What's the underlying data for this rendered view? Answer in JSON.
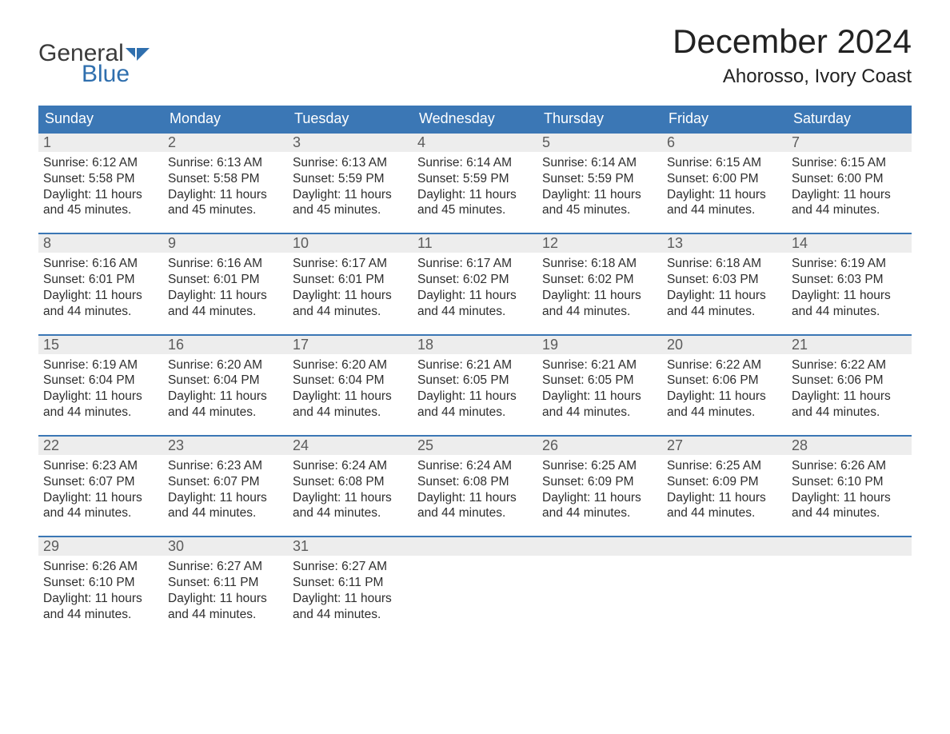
{
  "logo": {
    "word1": "General",
    "word2": "Blue",
    "word1_color": "#3a3a3a",
    "word2_color": "#2f6fae",
    "flag_color": "#2f6fae"
  },
  "title": {
    "month": "December 2024",
    "location": "Ahorosso, Ivory Coast",
    "month_fontsize": 42,
    "location_fontsize": 24,
    "text_color": "#222222"
  },
  "colors": {
    "header_bg": "#3b77b5",
    "header_text": "#ffffff",
    "row_divider": "#3b77b5",
    "daynum_bg": "#ededed",
    "daynum_text": "#5c5c5c",
    "body_text": "#2e2e2e",
    "page_bg": "#ffffff"
  },
  "layout": {
    "columns": 7,
    "header_fontsize": 18,
    "daynum_fontsize": 18,
    "body_fontsize": 15.5
  },
  "day_headers": [
    "Sunday",
    "Monday",
    "Tuesday",
    "Wednesday",
    "Thursday",
    "Friday",
    "Saturday"
  ],
  "weeks": [
    [
      {
        "num": "1",
        "sunrise": "Sunrise: 6:12 AM",
        "sunset": "Sunset: 5:58 PM",
        "daylight": "Daylight: 11 hours and 45 minutes."
      },
      {
        "num": "2",
        "sunrise": "Sunrise: 6:13 AM",
        "sunset": "Sunset: 5:58 PM",
        "daylight": "Daylight: 11 hours and 45 minutes."
      },
      {
        "num": "3",
        "sunrise": "Sunrise: 6:13 AM",
        "sunset": "Sunset: 5:59 PM",
        "daylight": "Daylight: 11 hours and 45 minutes."
      },
      {
        "num": "4",
        "sunrise": "Sunrise: 6:14 AM",
        "sunset": "Sunset: 5:59 PM",
        "daylight": "Daylight: 11 hours and 45 minutes."
      },
      {
        "num": "5",
        "sunrise": "Sunrise: 6:14 AM",
        "sunset": "Sunset: 5:59 PM",
        "daylight": "Daylight: 11 hours and 45 minutes."
      },
      {
        "num": "6",
        "sunrise": "Sunrise: 6:15 AM",
        "sunset": "Sunset: 6:00 PM",
        "daylight": "Daylight: 11 hours and 44 minutes."
      },
      {
        "num": "7",
        "sunrise": "Sunrise: 6:15 AM",
        "sunset": "Sunset: 6:00 PM",
        "daylight": "Daylight: 11 hours and 44 minutes."
      }
    ],
    [
      {
        "num": "8",
        "sunrise": "Sunrise: 6:16 AM",
        "sunset": "Sunset: 6:01 PM",
        "daylight": "Daylight: 11 hours and 44 minutes."
      },
      {
        "num": "9",
        "sunrise": "Sunrise: 6:16 AM",
        "sunset": "Sunset: 6:01 PM",
        "daylight": "Daylight: 11 hours and 44 minutes."
      },
      {
        "num": "10",
        "sunrise": "Sunrise: 6:17 AM",
        "sunset": "Sunset: 6:01 PM",
        "daylight": "Daylight: 11 hours and 44 minutes."
      },
      {
        "num": "11",
        "sunrise": "Sunrise: 6:17 AM",
        "sunset": "Sunset: 6:02 PM",
        "daylight": "Daylight: 11 hours and 44 minutes."
      },
      {
        "num": "12",
        "sunrise": "Sunrise: 6:18 AM",
        "sunset": "Sunset: 6:02 PM",
        "daylight": "Daylight: 11 hours and 44 minutes."
      },
      {
        "num": "13",
        "sunrise": "Sunrise: 6:18 AM",
        "sunset": "Sunset: 6:03 PM",
        "daylight": "Daylight: 11 hours and 44 minutes."
      },
      {
        "num": "14",
        "sunrise": "Sunrise: 6:19 AM",
        "sunset": "Sunset: 6:03 PM",
        "daylight": "Daylight: 11 hours and 44 minutes."
      }
    ],
    [
      {
        "num": "15",
        "sunrise": "Sunrise: 6:19 AM",
        "sunset": "Sunset: 6:04 PM",
        "daylight": "Daylight: 11 hours and 44 minutes."
      },
      {
        "num": "16",
        "sunrise": "Sunrise: 6:20 AM",
        "sunset": "Sunset: 6:04 PM",
        "daylight": "Daylight: 11 hours and 44 minutes."
      },
      {
        "num": "17",
        "sunrise": "Sunrise: 6:20 AM",
        "sunset": "Sunset: 6:04 PM",
        "daylight": "Daylight: 11 hours and 44 minutes."
      },
      {
        "num": "18",
        "sunrise": "Sunrise: 6:21 AM",
        "sunset": "Sunset: 6:05 PM",
        "daylight": "Daylight: 11 hours and 44 minutes."
      },
      {
        "num": "19",
        "sunrise": "Sunrise: 6:21 AM",
        "sunset": "Sunset: 6:05 PM",
        "daylight": "Daylight: 11 hours and 44 minutes."
      },
      {
        "num": "20",
        "sunrise": "Sunrise: 6:22 AM",
        "sunset": "Sunset: 6:06 PM",
        "daylight": "Daylight: 11 hours and 44 minutes."
      },
      {
        "num": "21",
        "sunrise": "Sunrise: 6:22 AM",
        "sunset": "Sunset: 6:06 PM",
        "daylight": "Daylight: 11 hours and 44 minutes."
      }
    ],
    [
      {
        "num": "22",
        "sunrise": "Sunrise: 6:23 AM",
        "sunset": "Sunset: 6:07 PM",
        "daylight": "Daylight: 11 hours and 44 minutes."
      },
      {
        "num": "23",
        "sunrise": "Sunrise: 6:23 AM",
        "sunset": "Sunset: 6:07 PM",
        "daylight": "Daylight: 11 hours and 44 minutes."
      },
      {
        "num": "24",
        "sunrise": "Sunrise: 6:24 AM",
        "sunset": "Sunset: 6:08 PM",
        "daylight": "Daylight: 11 hours and 44 minutes."
      },
      {
        "num": "25",
        "sunrise": "Sunrise: 6:24 AM",
        "sunset": "Sunset: 6:08 PM",
        "daylight": "Daylight: 11 hours and 44 minutes."
      },
      {
        "num": "26",
        "sunrise": "Sunrise: 6:25 AM",
        "sunset": "Sunset: 6:09 PM",
        "daylight": "Daylight: 11 hours and 44 minutes."
      },
      {
        "num": "27",
        "sunrise": "Sunrise: 6:25 AM",
        "sunset": "Sunset: 6:09 PM",
        "daylight": "Daylight: 11 hours and 44 minutes."
      },
      {
        "num": "28",
        "sunrise": "Sunrise: 6:26 AM",
        "sunset": "Sunset: 6:10 PM",
        "daylight": "Daylight: 11 hours and 44 minutes."
      }
    ],
    [
      {
        "num": "29",
        "sunrise": "Sunrise: 6:26 AM",
        "sunset": "Sunset: 6:10 PM",
        "daylight": "Daylight: 11 hours and 44 minutes."
      },
      {
        "num": "30",
        "sunrise": "Sunrise: 6:27 AM",
        "sunset": "Sunset: 6:11 PM",
        "daylight": "Daylight: 11 hours and 44 minutes."
      },
      {
        "num": "31",
        "sunrise": "Sunrise: 6:27 AM",
        "sunset": "Sunset: 6:11 PM",
        "daylight": "Daylight: 11 hours and 44 minutes."
      },
      null,
      null,
      null,
      null
    ]
  ]
}
